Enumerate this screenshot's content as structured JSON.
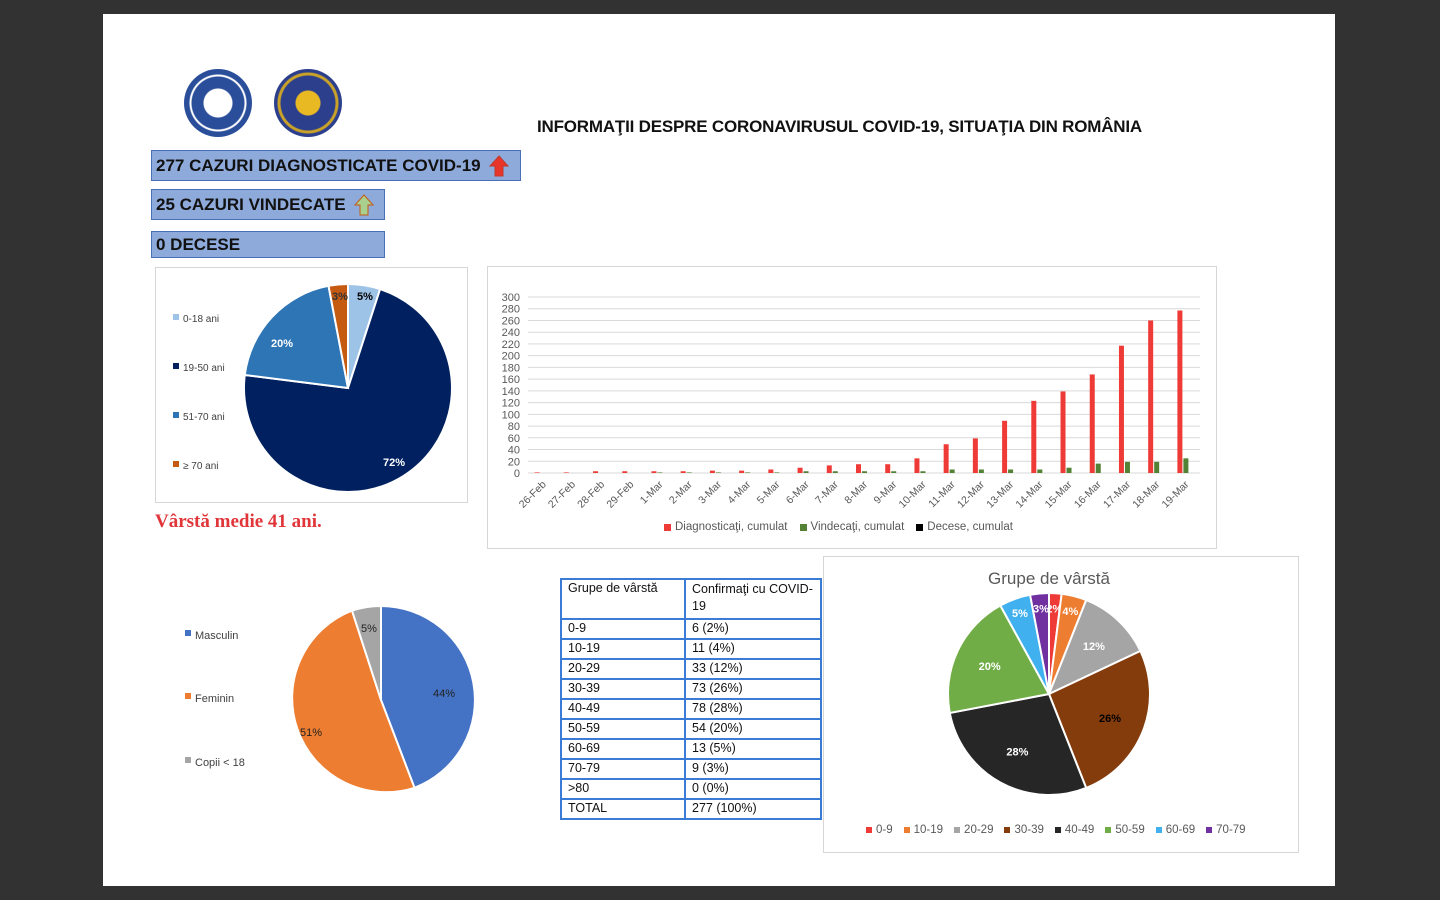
{
  "title": "INFORMAŢII DESPRE CORONAVIRUSUL COVID-19, SITUAŢIA DIN ROMÂNIA",
  "logos": [
    "guvernul-romaniei-logo",
    "departamentul-pentru-situatii-de-urgenta-logo"
  ],
  "stats": {
    "diagnosed": "277 CAZURI DIAGNOSTICATE COVID-19",
    "recovered": "25 CAZURI VINDECATE",
    "deaths": "0 DECESE"
  },
  "colors": {
    "stat_bg": "#8eaadb",
    "arrow_red": "#e8352a",
    "arrow_green": "#a9d08e",
    "accent_red": "#e0363a"
  },
  "average_age": "Vârstă medie 41 ani.",
  "age_table": {
    "headers": [
      "Grupe de vârstă",
      "Confirmaţi cu COVID-19"
    ],
    "rows": [
      [
        "0-9",
        "6 (2%)"
      ],
      [
        "10-19",
        "11 (4%)"
      ],
      [
        "20-29",
        "33 (12%)"
      ],
      [
        "30-39",
        "73 (26%)"
      ],
      [
        "40-49",
        "78 (28%)"
      ],
      [
        "50-59",
        "54 (20%)"
      ],
      [
        "60-69",
        "13 (5%)"
      ],
      [
        "70-79",
        "9 (3%)"
      ],
      [
        ">80",
        "0 (0%)"
      ],
      [
        "TOTAL",
        "277 (100%)"
      ]
    ]
  },
  "chart_data": [
    {
      "type": "pie",
      "title": "",
      "categories": [
        "0-18 ani",
        "19-50 ani",
        "51-70 ani",
        "≥ 70 ani"
      ],
      "values": [
        5,
        72,
        20,
        3
      ],
      "labels": [
        "5%",
        "72%",
        "20%",
        "3%"
      ],
      "colors": [
        "#9dc3e6",
        "#002060",
        "#2e75b6",
        "#c55a11"
      ],
      "legend_position": "left"
    },
    {
      "type": "bar",
      "title": "",
      "categories": [
        "26-Feb",
        "27-Feb",
        "28-Feb",
        "29-Feb",
        "1-Mar",
        "2-Mar",
        "3-Mar",
        "4-Mar",
        "5-Mar",
        "6-Mar",
        "7-Mar",
        "8-Mar",
        "9-Mar",
        "10-Mar",
        "11-Mar",
        "12-Mar",
        "13-Mar",
        "14-Mar",
        "15-Mar",
        "16-Mar",
        "17-Mar",
        "18-Mar",
        "19-Mar"
      ],
      "series": [
        {
          "name": "Diagnosticaţi, cumulat",
          "color": "#ee3b37",
          "values": [
            1,
            1,
            3,
            3,
            3,
            3,
            4,
            4,
            6,
            9,
            13,
            15,
            15,
            25,
            49,
            59,
            89,
            123,
            139,
            168,
            217,
            260,
            277
          ]
        },
        {
          "name": "Vindecaţi, cumulat",
          "color": "#548235",
          "values": [
            0,
            0,
            0,
            0,
            1,
            1,
            1,
            1,
            1,
            3,
            3,
            3,
            3,
            3,
            6,
            6,
            6,
            6,
            9,
            16,
            19,
            19,
            25
          ]
        },
        {
          "name": "Decese, cumulat",
          "color": "#000000",
          "values": [
            0,
            0,
            0,
            0,
            0,
            0,
            0,
            0,
            0,
            0,
            0,
            0,
            0,
            0,
            0,
            0,
            0,
            0,
            0,
            0,
            0,
            0,
            0
          ]
        }
      ],
      "yticks": [
        0,
        20,
        40,
        60,
        80,
        100,
        120,
        140,
        160,
        180,
        200,
        220,
        240,
        260,
        280,
        300
      ],
      "ylim": [
        0,
        300
      ],
      "grid": true,
      "legend_position": "bottom"
    },
    {
      "type": "pie",
      "title": "",
      "categories": [
        "Masculin",
        "Feminin",
        "Copii < 18"
      ],
      "values": [
        44,
        51,
        5
      ],
      "labels": [
        "44%",
        "51%",
        "5%"
      ],
      "colors": [
        "#4472c4",
        "#ed7d31",
        "#a5a5a5"
      ],
      "legend_position": "left"
    },
    {
      "type": "pie",
      "title": "Grupe de vârstă",
      "categories": [
        "0-9",
        "10-19",
        "20-29",
        "30-39",
        "40-49",
        "50-59",
        "60-69",
        "70-79"
      ],
      "values": [
        2,
        4,
        12,
        26,
        28,
        20,
        5,
        3
      ],
      "labels": [
        "2%",
        "4%",
        "12%",
        "26%",
        "28%",
        "20%",
        "5%",
        "3%"
      ],
      "colors": [
        "#ee3b37",
        "#ed7d31",
        "#a5a5a5",
        "#843c0c",
        "#262626",
        "#70ad47",
        "#41b0ee",
        "#7030a0"
      ],
      "legend_position": "bottom"
    }
  ]
}
